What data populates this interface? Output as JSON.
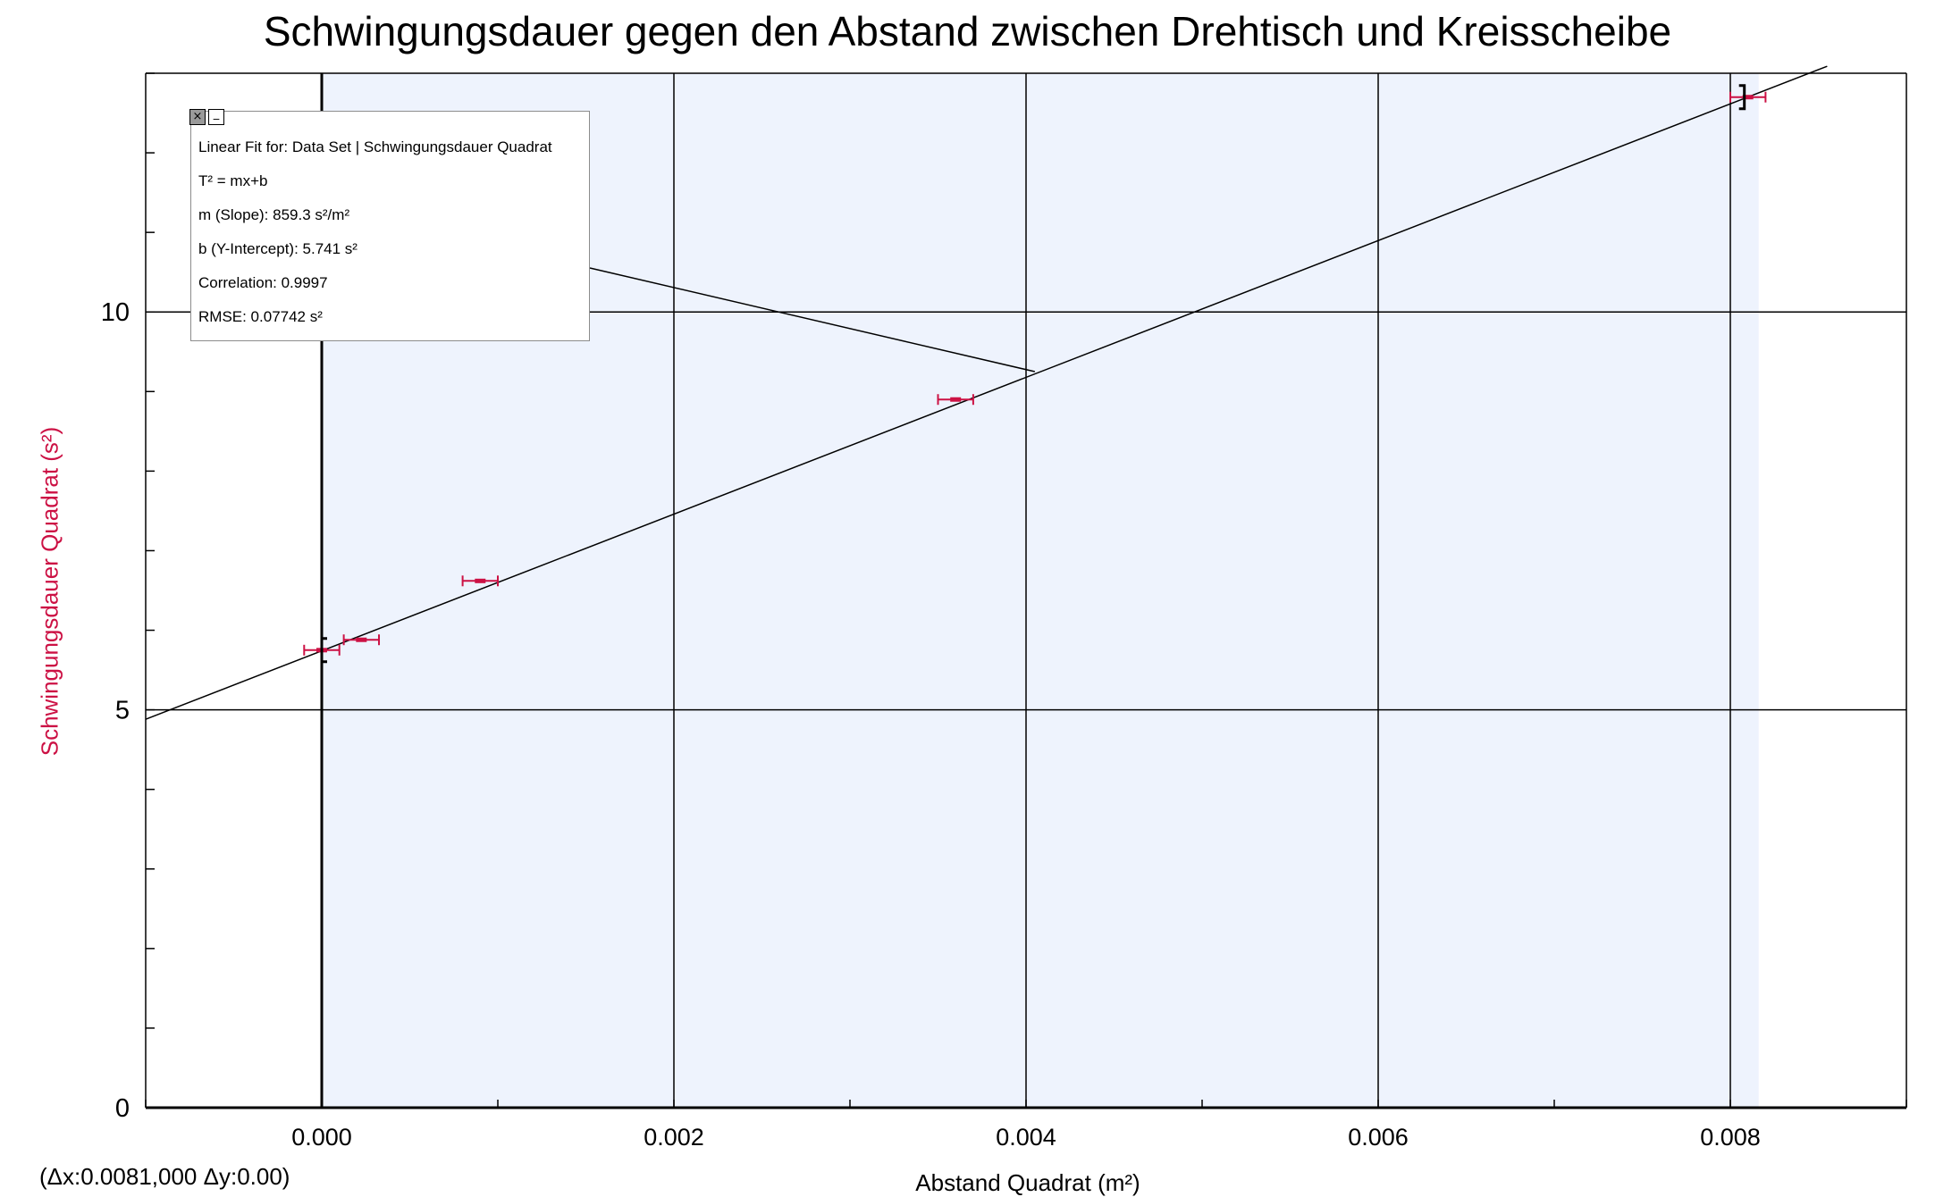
{
  "chart_data": {
    "type": "scatter",
    "title": "Schwingungsdauer gegen den Abstand zwischen Drehtisch und Kreisscheibe",
    "xlabel": "Abstand Quadrat (m²)",
    "ylabel": "Schwingungsdauer Quadrat (s²)",
    "xlim": [
      -0.001,
      0.009
    ],
    "ylim": [
      0,
      13
    ],
    "x_ticks": [
      "0.000",
      "0.002",
      "0.004",
      "0.006",
      "0.008"
    ],
    "y_ticks": [
      "0",
      "5",
      "10"
    ],
    "grid": true,
    "series": [
      {
        "name": "Schwingungsdauer Quadrat",
        "x": [
          0.0,
          0.000225,
          0.0009,
          0.0036,
          0.0081
        ],
        "y": [
          5.75,
          5.88,
          6.62,
          8.9,
          12.7
        ],
        "x_error": [
          0.0001,
          0.0001,
          0.0001,
          0.0001,
          0.0001
        ],
        "color": "#cc1144"
      }
    ],
    "fit": {
      "slope": 859.3,
      "intercept": 5.741
    },
    "selection_x": [
      0.0,
      0.0081
    ],
    "annotation_anchor": [
      0.00405,
      9.25
    ]
  },
  "fit_box": {
    "close_label": "×",
    "minimize_label": "_",
    "lines": [
      "Linear Fit for: Data Set | Schwingungsdauer Quadrat",
      "T² = mx+b",
      "m (Slope): 859.3 s²/m²",
      "b (Y-Intercept): 5.741 s²",
      "Correlation: 0.9997",
      "RMSE: 0.07742 s²"
    ]
  },
  "delta_readout": "(Δx:0.0081,000 Δy:0.00)",
  "colors": {
    "data": "#cc1144",
    "ylabel": "#cc1144",
    "selection_fill": "#eef3fd",
    "grid": "#000000"
  }
}
